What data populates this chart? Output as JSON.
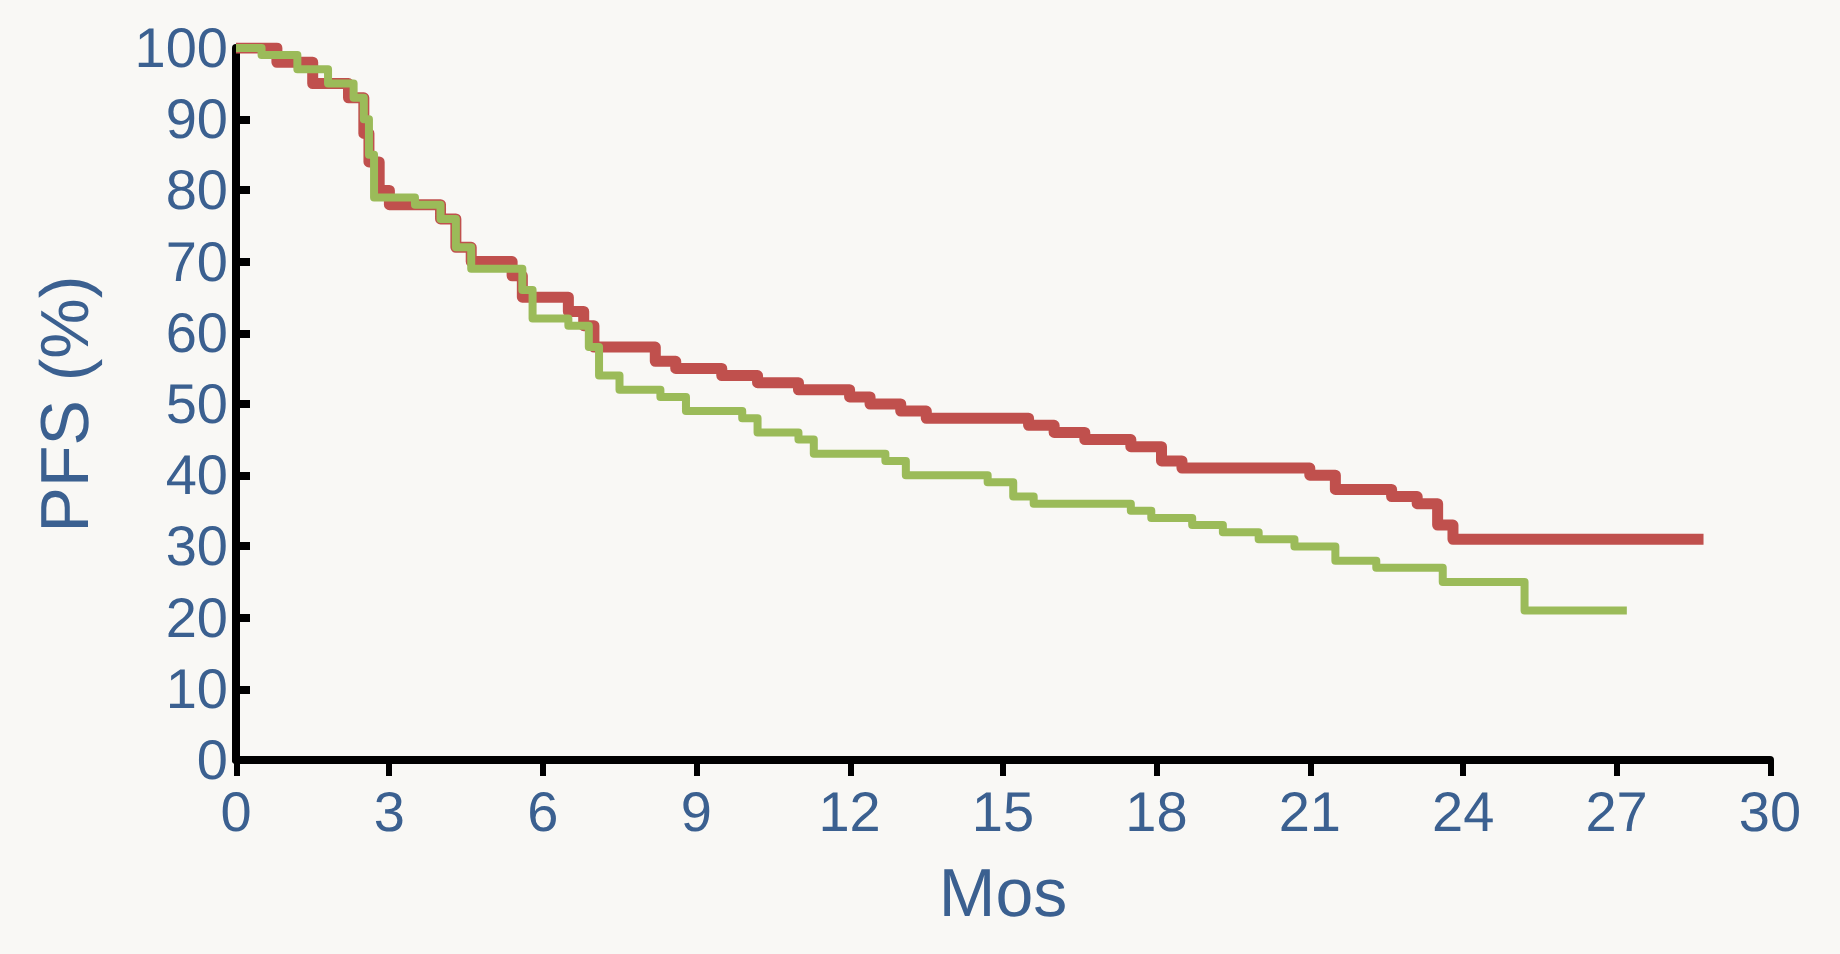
{
  "chart_data": {
    "type": "step",
    "xlabel": "Mos",
    "ylabel": "PFS (%)",
    "xlim": [
      0,
      30
    ],
    "xticks": [
      0,
      3,
      6,
      9,
      12,
      15,
      18,
      21,
      24,
      27,
      30
    ],
    "ylim": [
      0,
      100
    ],
    "yticks": [
      0,
      10,
      20,
      30,
      40,
      50,
      60,
      70,
      80,
      90,
      100
    ],
    "grid": false,
    "marker": "none",
    "line_style": "solid",
    "series": [
      {
        "color": "#c0504d",
        "x": [
          0,
          0.8,
          1.5,
          2.2,
          2.5,
          2.6,
          2.8,
          3.0,
          4.0,
          4.3,
          4.6,
          5.4,
          5.6,
          6.5,
          6.8,
          7.0,
          8.2,
          8.6,
          9.5,
          10.2,
          11.0,
          12.0,
          12.4,
          13.0,
          13.5,
          15.5,
          16.0,
          16.6,
          17.5,
          18.1,
          18.5,
          21.0,
          21.5,
          22.6,
          23.1,
          23.5,
          23.8,
          28.7
        ],
        "values": [
          100,
          98,
          95,
          93,
          88,
          84,
          80,
          78,
          76,
          72,
          70,
          68,
          65,
          63,
          61,
          58,
          56,
          55,
          54,
          53,
          52,
          51,
          50,
          49,
          48,
          47,
          46,
          45,
          44,
          42,
          41,
          40,
          38,
          37,
          36,
          33,
          31,
          31
        ]
      },
      {
        "color": "#9bbb59",
        "x": [
          0,
          0.5,
          1.2,
          1.8,
          2.3,
          2.5,
          2.6,
          2.7,
          3.5,
          4.0,
          4.3,
          4.6,
          5.6,
          5.8,
          6.5,
          6.9,
          7.1,
          7.5,
          8.3,
          8.8,
          9.9,
          10.2,
          11.0,
          11.3,
          12.7,
          13.1,
          14.7,
          15.2,
          15.6,
          17.5,
          17.9,
          18.7,
          19.3,
          20.0,
          20.7,
          21.5,
          22.3,
          23.6,
          25.2,
          27.2
        ],
        "values": [
          100,
          99,
          97,
          95,
          93,
          90,
          85,
          79,
          78,
          76,
          72,
          69,
          66,
          62,
          61,
          58,
          54,
          52,
          51,
          49,
          48,
          46,
          45,
          43,
          42,
          40,
          39,
          37,
          36,
          35,
          34,
          33,
          32,
          31,
          30,
          28,
          27,
          25,
          21,
          21
        ]
      }
    ]
  }
}
